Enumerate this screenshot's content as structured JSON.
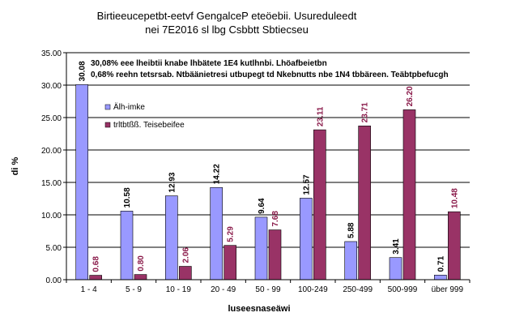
{
  "chart_data": {
    "type": "bar",
    "title": [
      "Birtieeucepetbt-eetvf GengalceP eteöebii. Usureduleedt",
      "nei 7E2016 sl lbg Csbbtt Sbtiecseu"
    ],
    "xlabel": "luseesnaseäwi",
    "ylabel": "di %",
    "ylim": [
      0,
      35
    ],
    "yticks": [
      "0.00",
      "5.00",
      "10.00",
      "15.00",
      "20.00",
      "25.00",
      "30.00",
      "35.00"
    ],
    "categories": [
      "1 - 4",
      "5 - 9",
      "10 - 19",
      "20 - 49",
      "50 - 99",
      "100-249",
      "250-499",
      "500-999",
      "über 999"
    ],
    "series": [
      {
        "name": "Älh-imke",
        "color": "#9999ff",
        "values": [
          30.08,
          10.58,
          12.93,
          14.22,
          9.64,
          12.57,
          5.88,
          3.41,
          0.71
        ],
        "labels": [
          "30.08",
          "10.58",
          "12.93",
          "14.22",
          "9.64",
          "12.57",
          "5.88",
          "3.41",
          "0.71"
        ]
      },
      {
        "name": "trltbtßß. Teisebeifee",
        "color": "#993366",
        "values": [
          0.68,
          0.8,
          2.06,
          5.29,
          7.68,
          23.11,
          23.71,
          26.2,
          10.48
        ],
        "labels": [
          "0.68",
          "0.80",
          "2.06",
          "5.29",
          "7.68",
          "23.11",
          "23.71",
          "26.20",
          "10.48"
        ]
      }
    ],
    "annotations": [
      "30,08% eee lheibtii knabe lhbätete 1E4 kutlhnbi. Lhöafbeietbn",
      "0,68% reehn tetsrsab. Ntbäänietresi utbupegt td Nkebnutts nbe 1N4 tbbäreen. Teäbtpbefucgh"
    ],
    "grid": true,
    "legend": "left, inside plot"
  }
}
